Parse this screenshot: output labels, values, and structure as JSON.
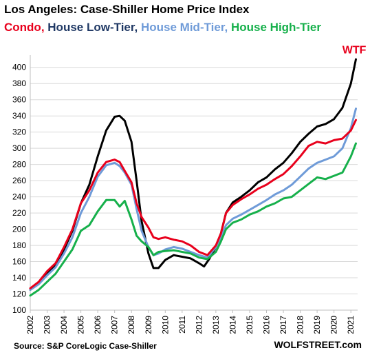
{
  "chart_data": {
    "type": "line",
    "title": "Los Angeles: Case-Shiller Home Price Index",
    "legend": [
      {
        "name": "Condo",
        "color": "#e8001c"
      },
      {
        "name": "House Low-Tier",
        "color": "#1f3864"
      },
      {
        "name": "House Mid-Tier",
        "color": "#6f9bd8"
      },
      {
        "name": "House High-Tier",
        "color": "#16b04b"
      }
    ],
    "legend_placement": "top, below title",
    "source": "Source: S&P CoreLogic Case-Shiller",
    "branding": "WOLFSTREET.com",
    "annotation": {
      "text": "WTF",
      "color": "#e8001c",
      "x": 2021.2,
      "y": 412
    },
    "xlim": [
      2002,
      2021.4
    ],
    "ylim": [
      100,
      410
    ],
    "ygrid": true,
    "xticks": [
      2002,
      2003,
      2004,
      2005,
      2006,
      2007,
      2008,
      2009,
      2010,
      2011,
      2012,
      2013,
      2014,
      2015,
      2016,
      2017,
      2018,
      2019,
      2020,
      2021
    ],
    "yticks": [
      100,
      120,
      140,
      160,
      180,
      200,
      220,
      240,
      260,
      280,
      300,
      320,
      340,
      360,
      380,
      400
    ],
    "series": [
      {
        "name": "House Low-Tier",
        "color": "#000000",
        "points": [
          [
            2002,
            125
          ],
          [
            2002.5,
            133
          ],
          [
            2003,
            145
          ],
          [
            2003.5,
            155
          ],
          [
            2004,
            175
          ],
          [
            2004.5,
            198
          ],
          [
            2005,
            232
          ],
          [
            2005.5,
            255
          ],
          [
            2006,
            290
          ],
          [
            2006.5,
            322
          ],
          [
            2007,
            339
          ],
          [
            2007.3,
            340
          ],
          [
            2007.6,
            334
          ],
          [
            2008,
            308
          ],
          [
            2008.3,
            260
          ],
          [
            2008.6,
            210
          ],
          [
            2009,
            170
          ],
          [
            2009.3,
            152
          ],
          [
            2009.6,
            152
          ],
          [
            2010,
            162
          ],
          [
            2010.5,
            168
          ],
          [
            2011,
            166
          ],
          [
            2011.5,
            164
          ],
          [
            2012,
            158
          ],
          [
            2012.3,
            154
          ],
          [
            2012.6,
            163
          ],
          [
            2013,
            178
          ],
          [
            2013.3,
            195
          ],
          [
            2013.6,
            220
          ],
          [
            2014,
            233
          ],
          [
            2014.5,
            240
          ],
          [
            2015,
            248
          ],
          [
            2015.5,
            258
          ],
          [
            2016,
            264
          ],
          [
            2016.5,
            274
          ],
          [
            2017,
            282
          ],
          [
            2017.5,
            294
          ],
          [
            2018,
            308
          ],
          [
            2018.5,
            318
          ],
          [
            2019,
            327
          ],
          [
            2019.5,
            330
          ],
          [
            2020,
            336
          ],
          [
            2020.5,
            350
          ],
          [
            2021,
            380
          ],
          [
            2021.2,
            400
          ],
          [
            2021.3,
            410
          ]
        ]
      },
      {
        "name": "House Mid-Tier",
        "color": "#6f9bd8",
        "points": [
          [
            2002,
            125
          ],
          [
            2002.5,
            132
          ],
          [
            2003,
            143
          ],
          [
            2003.5,
            153
          ],
          [
            2004,
            170
          ],
          [
            2004.5,
            190
          ],
          [
            2005,
            220
          ],
          [
            2005.5,
            240
          ],
          [
            2006,
            265
          ],
          [
            2006.5,
            279
          ],
          [
            2007,
            282
          ],
          [
            2007.3,
            278
          ],
          [
            2007.6,
            270
          ],
          [
            2008,
            255
          ],
          [
            2008.3,
            225
          ],
          [
            2008.6,
            198
          ],
          [
            2009,
            178
          ],
          [
            2009.3,
            168
          ],
          [
            2009.6,
            170
          ],
          [
            2010,
            175
          ],
          [
            2010.5,
            178
          ],
          [
            2011,
            176
          ],
          [
            2011.5,
            172
          ],
          [
            2012,
            168
          ],
          [
            2012.5,
            165
          ],
          [
            2013,
            178
          ],
          [
            2013.3,
            190
          ],
          [
            2013.6,
            205
          ],
          [
            2014,
            213
          ],
          [
            2014.5,
            218
          ],
          [
            2015,
            224
          ],
          [
            2015.5,
            230
          ],
          [
            2016,
            236
          ],
          [
            2016.5,
            243
          ],
          [
            2017,
            248
          ],
          [
            2017.5,
            255
          ],
          [
            2018,
            265
          ],
          [
            2018.5,
            275
          ],
          [
            2019,
            282
          ],
          [
            2019.5,
            286
          ],
          [
            2020,
            290
          ],
          [
            2020.5,
            300
          ],
          [
            2021,
            325
          ],
          [
            2021.3,
            349
          ]
        ]
      },
      {
        "name": "Condo",
        "color": "#e8001c",
        "points": [
          [
            2002,
            127
          ],
          [
            2002.5,
            135
          ],
          [
            2003,
            148
          ],
          [
            2003.5,
            158
          ],
          [
            2004,
            178
          ],
          [
            2004.5,
            200
          ],
          [
            2005,
            232
          ],
          [
            2005.5,
            248
          ],
          [
            2006,
            270
          ],
          [
            2006.5,
            283
          ],
          [
            2007,
            286
          ],
          [
            2007.3,
            283
          ],
          [
            2007.6,
            272
          ],
          [
            2008,
            258
          ],
          [
            2008.3,
            232
          ],
          [
            2008.6,
            215
          ],
          [
            2009,
            202
          ],
          [
            2009.3,
            190
          ],
          [
            2009.6,
            188
          ],
          [
            2010,
            190
          ],
          [
            2010.5,
            187
          ],
          [
            2011,
            185
          ],
          [
            2011.5,
            180
          ],
          [
            2012,
            172
          ],
          [
            2012.5,
            168
          ],
          [
            2013,
            180
          ],
          [
            2013.3,
            195
          ],
          [
            2013.6,
            220
          ],
          [
            2014,
            230
          ],
          [
            2014.5,
            237
          ],
          [
            2015,
            243
          ],
          [
            2015.5,
            250
          ],
          [
            2016,
            255
          ],
          [
            2016.5,
            262
          ],
          [
            2017,
            268
          ],
          [
            2017.5,
            278
          ],
          [
            2018,
            290
          ],
          [
            2018.5,
            303
          ],
          [
            2019,
            308
          ],
          [
            2019.5,
            306
          ],
          [
            2020,
            310
          ],
          [
            2020.5,
            312
          ],
          [
            2021,
            322
          ],
          [
            2021.3,
            335
          ]
        ]
      },
      {
        "name": "House High-Tier",
        "color": "#16b04b",
        "points": [
          [
            2002,
            118
          ],
          [
            2002.5,
            125
          ],
          [
            2003,
            135
          ],
          [
            2003.5,
            145
          ],
          [
            2004,
            160
          ],
          [
            2004.5,
            175
          ],
          [
            2005,
            198
          ],
          [
            2005.5,
            205
          ],
          [
            2006,
            222
          ],
          [
            2006.5,
            236
          ],
          [
            2007,
            236
          ],
          [
            2007.3,
            228
          ],
          [
            2007.6,
            235
          ],
          [
            2008,
            212
          ],
          [
            2008.3,
            192
          ],
          [
            2008.6,
            185
          ],
          [
            2009,
            178
          ],
          [
            2009.3,
            168
          ],
          [
            2009.6,
            172
          ],
          [
            2010,
            173
          ],
          [
            2010.5,
            174
          ],
          [
            2011,
            172
          ],
          [
            2011.5,
            170
          ],
          [
            2012,
            165
          ],
          [
            2012.5,
            163
          ],
          [
            2013,
            172
          ],
          [
            2013.3,
            185
          ],
          [
            2013.6,
            200
          ],
          [
            2014,
            208
          ],
          [
            2014.5,
            212
          ],
          [
            2015,
            218
          ],
          [
            2015.5,
            222
          ],
          [
            2016,
            228
          ],
          [
            2016.5,
            232
          ],
          [
            2017,
            238
          ],
          [
            2017.5,
            240
          ],
          [
            2018,
            248
          ],
          [
            2018.5,
            256
          ],
          [
            2019,
            264
          ],
          [
            2019.5,
            262
          ],
          [
            2020,
            266
          ],
          [
            2020.5,
            270
          ],
          [
            2021,
            290
          ],
          [
            2021.3,
            306
          ]
        ]
      }
    ]
  }
}
